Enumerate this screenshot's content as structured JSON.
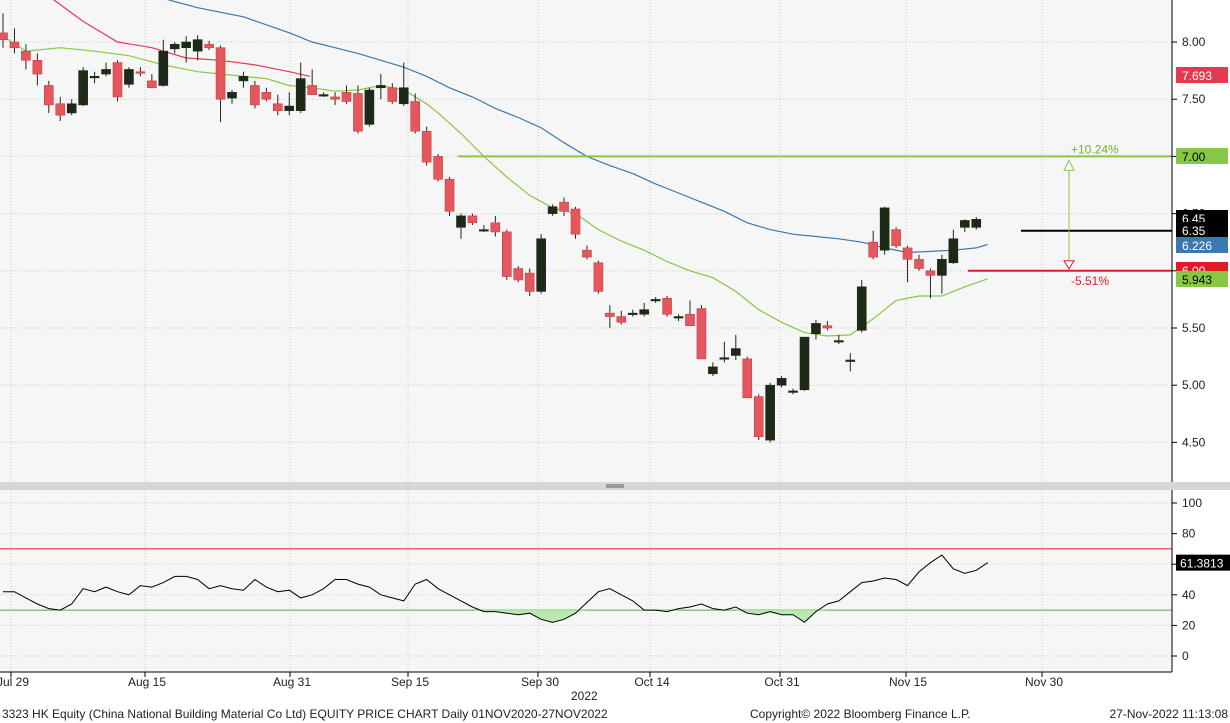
{
  "chart_data": [
    {
      "type": "candlestick",
      "title": "",
      "ylim": [
        4.15,
        8.25
      ],
      "y_ticks": [
        "8.00",
        "7.50",
        "7.00",
        "6.50",
        "6.00",
        "5.50",
        "5.00",
        "4.50"
      ],
      "y_tick_values": [
        8.0,
        7.5,
        7.0,
        6.5,
        6.0,
        5.5,
        5.0,
        4.5
      ],
      "up_color": "#1d2a17",
      "down_color": "#e5575f",
      "candles": [
        {
          "o": 8.08,
          "h": 8.25,
          "l": 7.95,
          "c": 8.02
        },
        {
          "o": 8.0,
          "h": 8.12,
          "l": 7.9,
          "c": 7.95
        },
        {
          "o": 7.92,
          "h": 7.98,
          "l": 7.76,
          "c": 7.84
        },
        {
          "o": 7.84,
          "h": 7.9,
          "l": 7.62,
          "c": 7.72
        },
        {
          "o": 7.62,
          "h": 7.66,
          "l": 7.38,
          "c": 7.45
        },
        {
          "o": 7.46,
          "h": 7.52,
          "l": 7.31,
          "c": 7.36
        },
        {
          "o": 7.38,
          "h": 7.5,
          "l": 7.36,
          "c": 7.46
        },
        {
          "o": 7.45,
          "h": 7.78,
          "l": 7.44,
          "c": 7.75
        },
        {
          "o": 7.7,
          "h": 7.74,
          "l": 7.64,
          "c": 7.7
        },
        {
          "o": 7.72,
          "h": 7.82,
          "l": 7.7,
          "c": 7.76
        },
        {
          "o": 7.82,
          "h": 7.84,
          "l": 7.48,
          "c": 7.52
        },
        {
          "o": 7.63,
          "h": 7.78,
          "l": 7.6,
          "c": 7.76
        },
        {
          "o": 7.74,
          "h": 7.78,
          "l": 7.7,
          "c": 7.73
        },
        {
          "o": 7.66,
          "h": 7.72,
          "l": 7.6,
          "c": 7.6
        },
        {
          "o": 7.62,
          "h": 8.02,
          "l": 7.61,
          "c": 7.92
        },
        {
          "o": 7.94,
          "h": 8.0,
          "l": 7.9,
          "c": 7.98
        },
        {
          "o": 7.95,
          "h": 8.05,
          "l": 7.82,
          "c": 8.0
        },
        {
          "o": 7.92,
          "h": 8.06,
          "l": 7.84,
          "c": 8.02
        },
        {
          "o": 7.98,
          "h": 8.01,
          "l": 7.93,
          "c": 7.95
        },
        {
          "o": 7.95,
          "h": 7.97,
          "l": 7.3,
          "c": 7.5
        },
        {
          "o": 7.51,
          "h": 7.58,
          "l": 7.46,
          "c": 7.56
        },
        {
          "o": 7.66,
          "h": 7.74,
          "l": 7.6,
          "c": 7.7
        },
        {
          "o": 7.62,
          "h": 7.66,
          "l": 7.42,
          "c": 7.45
        },
        {
          "o": 7.56,
          "h": 7.6,
          "l": 7.48,
          "c": 7.5
        },
        {
          "o": 7.46,
          "h": 7.54,
          "l": 7.36,
          "c": 7.4
        },
        {
          "o": 7.4,
          "h": 7.56,
          "l": 7.36,
          "c": 7.44
        },
        {
          "o": 7.4,
          "h": 7.82,
          "l": 7.38,
          "c": 7.68
        },
        {
          "o": 7.62,
          "h": 7.76,
          "l": 7.58,
          "c": 7.54
        },
        {
          "o": 7.54,
          "h": 7.56,
          "l": 7.52,
          "c": 7.54
        },
        {
          "o": 7.52,
          "h": 7.56,
          "l": 7.45,
          "c": 7.5
        },
        {
          "o": 7.56,
          "h": 7.62,
          "l": 7.46,
          "c": 7.48
        },
        {
          "o": 7.55,
          "h": 7.62,
          "l": 7.2,
          "c": 7.22
        },
        {
          "o": 7.28,
          "h": 7.6,
          "l": 7.26,
          "c": 7.58
        },
        {
          "o": 7.6,
          "h": 7.72,
          "l": 7.5,
          "c": 7.62
        },
        {
          "o": 7.6,
          "h": 7.64,
          "l": 7.46,
          "c": 7.48
        },
        {
          "o": 7.46,
          "h": 7.82,
          "l": 7.44,
          "c": 7.6
        },
        {
          "o": 7.48,
          "h": 7.55,
          "l": 7.2,
          "c": 7.22
        },
        {
          "o": 7.22,
          "h": 7.26,
          "l": 6.92,
          "c": 6.95
        },
        {
          "o": 7.0,
          "h": 7.02,
          "l": 6.78,
          "c": 6.8
        },
        {
          "o": 6.8,
          "h": 6.82,
          "l": 6.48,
          "c": 6.52
        },
        {
          "o": 6.38,
          "h": 6.5,
          "l": 6.28,
          "c": 6.48
        },
        {
          "o": 6.48,
          "h": 6.5,
          "l": 6.4,
          "c": 6.42
        },
        {
          "o": 6.36,
          "h": 6.4,
          "l": 6.34,
          "c": 6.36
        },
        {
          "o": 6.42,
          "h": 6.48,
          "l": 6.3,
          "c": 6.34
        },
        {
          "o": 6.34,
          "h": 6.36,
          "l": 5.92,
          "c": 5.95
        },
        {
          "o": 6.02,
          "h": 6.04,
          "l": 5.9,
          "c": 5.92
        },
        {
          "o": 5.98,
          "h": 6.02,
          "l": 5.78,
          "c": 5.82
        },
        {
          "o": 5.82,
          "h": 6.32,
          "l": 5.8,
          "c": 6.28
        },
        {
          "o": 6.5,
          "h": 6.58,
          "l": 6.48,
          "c": 6.56
        },
        {
          "o": 6.6,
          "h": 6.64,
          "l": 6.48,
          "c": 6.52
        },
        {
          "o": 6.54,
          "h": 6.56,
          "l": 6.28,
          "c": 6.32
        },
        {
          "o": 6.18,
          "h": 6.22,
          "l": 6.1,
          "c": 6.12
        },
        {
          "o": 6.07,
          "h": 6.09,
          "l": 5.8,
          "c": 5.82
        },
        {
          "o": 5.63,
          "h": 5.7,
          "l": 5.5,
          "c": 5.6
        },
        {
          "o": 5.6,
          "h": 5.65,
          "l": 5.53,
          "c": 5.55
        },
        {
          "o": 5.63,
          "h": 5.66,
          "l": 5.6,
          "c": 5.63
        },
        {
          "o": 5.62,
          "h": 5.72,
          "l": 5.6,
          "c": 5.66
        },
        {
          "o": 5.75,
          "h": 5.77,
          "l": 5.72,
          "c": 5.75
        },
        {
          "o": 5.76,
          "h": 5.78,
          "l": 5.6,
          "c": 5.62
        },
        {
          "o": 5.6,
          "h": 5.62,
          "l": 5.56,
          "c": 5.6
        },
        {
          "o": 5.62,
          "h": 5.74,
          "l": 5.52,
          "c": 5.52
        },
        {
          "o": 5.67,
          "h": 5.7,
          "l": 5.23,
          "c": 5.23
        },
        {
          "o": 5.1,
          "h": 5.2,
          "l": 5.08,
          "c": 5.16
        },
        {
          "o": 5.24,
          "h": 5.38,
          "l": 5.2,
          "c": 5.24
        },
        {
          "o": 5.26,
          "h": 5.44,
          "l": 5.22,
          "c": 5.32
        },
        {
          "o": 5.23,
          "h": 5.25,
          "l": 4.89,
          "c": 4.89
        },
        {
          "o": 4.9,
          "h": 4.92,
          "l": 4.52,
          "c": 4.55
        },
        {
          "o": 4.52,
          "h": 5.02,
          "l": 4.5,
          "c": 5.0
        },
        {
          "o": 5.0,
          "h": 5.08,
          "l": 4.98,
          "c": 5.06
        },
        {
          "o": 4.94,
          "h": 4.97,
          "l": 4.92,
          "c": 4.95
        },
        {
          "o": 4.96,
          "h": 5.42,
          "l": 4.95,
          "c": 5.42
        },
        {
          "o": 5.45,
          "h": 5.57,
          "l": 5.4,
          "c": 5.54
        },
        {
          "o": 5.52,
          "h": 5.56,
          "l": 5.48,
          "c": 5.5
        },
        {
          "o": 5.39,
          "h": 5.44,
          "l": 5.36,
          "c": 5.39
        },
        {
          "o": 5.22,
          "h": 5.28,
          "l": 5.12,
          "c": 5.22
        },
        {
          "o": 5.48,
          "h": 5.92,
          "l": 5.46,
          "c": 5.86
        },
        {
          "o": 6.25,
          "h": 6.35,
          "l": 6.1,
          "c": 6.12
        },
        {
          "o": 6.18,
          "h": 6.56,
          "l": 6.14,
          "c": 6.55
        },
        {
          "o": 6.36,
          "h": 6.38,
          "l": 6.2,
          "c": 6.22
        },
        {
          "o": 6.2,
          "h": 6.22,
          "l": 5.9,
          "c": 6.1
        },
        {
          "o": 6.1,
          "h": 6.14,
          "l": 6.0,
          "c": 6.02
        },
        {
          "o": 6.0,
          "h": 6.02,
          "l": 5.76,
          "c": 5.96
        },
        {
          "o": 5.96,
          "h": 6.14,
          "l": 5.8,
          "c": 6.1
        },
        {
          "o": 6.07,
          "h": 6.36,
          "l": 6.06,
          "c": 6.28
        },
        {
          "o": 6.38,
          "h": 6.45,
          "l": 6.34,
          "c": 6.44
        },
        {
          "o": 6.38,
          "h": 6.47,
          "l": 6.36,
          "c": 6.45
        }
      ],
      "moving_averages": [
        {
          "name": "",
          "color": "#e63950",
          "x": [
            0,
            1,
            4,
            7,
            10,
            13,
            16,
            19,
            22,
            25,
            26.8
          ],
          "values": [
            8.62,
            8.55,
            8.4,
            8.18,
            8.0,
            7.95,
            7.86,
            7.84,
            7.8,
            7.74,
            7.7
          ]
        },
        {
          "name": "",
          "color": "#3b78b0",
          "x": [
            0,
            2,
            5,
            8,
            11,
            14,
            17,
            19,
            21,
            23,
            25,
            27,
            29,
            31,
            33,
            35,
            37,
            39,
            41,
            43,
            45,
            47,
            49,
            51,
            53,
            55,
            57,
            59,
            61,
            63,
            65,
            67,
            69,
            71,
            73,
            75,
            77,
            79,
            81,
            83,
            85,
            86
          ],
          "values": [
            8.85,
            8.8,
            8.72,
            8.6,
            8.48,
            8.38,
            8.3,
            8.26,
            8.22,
            8.15,
            8.08,
            8.0,
            7.95,
            7.9,
            7.84,
            7.78,
            7.7,
            7.6,
            7.52,
            7.42,
            7.34,
            7.25,
            7.12,
            7.0,
            6.92,
            6.85,
            6.76,
            6.68,
            6.6,
            6.52,
            6.42,
            6.36,
            6.32,
            6.3,
            6.28,
            6.25,
            6.2,
            6.16,
            6.17,
            6.18,
            6.2,
            6.23
          ]
        },
        {
          "name": "",
          "color": "#86c845",
          "x": [
            0,
            2,
            5,
            8,
            11,
            14,
            17,
            19,
            21,
            23,
            25,
            27,
            29,
            31,
            33,
            35,
            37,
            38,
            40,
            42,
            44,
            46,
            48,
            50,
            52,
            54,
            56,
            58,
            60,
            62,
            64,
            66,
            68,
            70,
            72,
            74,
            76,
            78,
            80,
            82,
            84,
            86
          ],
          "values": [
            8.05,
            7.92,
            7.95,
            7.92,
            7.88,
            7.8,
            7.74,
            7.72,
            7.7,
            7.68,
            7.62,
            7.6,
            7.57,
            7.58,
            7.62,
            7.58,
            7.46,
            7.38,
            7.2,
            7.0,
            6.82,
            6.66,
            6.55,
            6.5,
            6.36,
            6.26,
            6.18,
            6.08,
            6.0,
            5.94,
            5.82,
            5.66,
            5.55,
            5.46,
            5.43,
            5.44,
            5.58,
            5.74,
            5.78,
            5.78,
            5.86,
            5.93
          ]
        }
      ],
      "horizontal_lines": [
        {
          "value": 7.0,
          "color": "#86c845"
        },
        {
          "value": 6.35,
          "color": "#000000"
        },
        {
          "value": 6.0,
          "color": "#e01b24"
        }
      ],
      "measure_labels": [
        {
          "text": "+10.24%",
          "color": "#6fb52f"
        },
        {
          "text": "-5.51%",
          "color": "#e01b24"
        }
      ],
      "price_tags": [
        {
          "text": "7.693",
          "value": 7.693,
          "bg": "#e63950",
          "fg": "#ffffff"
        },
        {
          "text": "7.00",
          "value": 7.0,
          "bg": "#86c845",
          "fg": "#000000"
        },
        {
          "text": "6.45",
          "value": 6.45,
          "bg": "#000000",
          "fg": "#ffffff"
        },
        {
          "text": "6.35",
          "value": 6.35,
          "bg": "#000000",
          "fg": "#ffffff"
        },
        {
          "text": "6.226",
          "value": 6.226,
          "bg": "#3b78b0",
          "fg": "#ffffff"
        },
        {
          "text": "6.00",
          "value": 6.0,
          "bg": "#e01b24",
          "fg": "#ffffff"
        },
        {
          "text": "5.943",
          "value": 5.943,
          "bg": "#86c845",
          "fg": "#000000"
        }
      ]
    },
    {
      "type": "line",
      "title": "",
      "ylim": [
        -8,
        112
      ],
      "y_ticks": [
        "100",
        "80",
        "60",
        "40",
        "20",
        "0"
      ],
      "y_tick_values": [
        100,
        80,
        60,
        40,
        20,
        0
      ],
      "overbought": 70,
      "oversold": 30,
      "line_color": "#000000",
      "last_value_tag": "61.3813",
      "values": [
        42,
        42,
        38,
        34,
        31,
        30,
        34,
        44,
        42,
        45,
        42,
        40,
        46,
        45,
        48,
        52,
        52,
        50,
        44,
        46,
        44,
        43,
        50,
        45,
        42,
        43,
        38,
        40,
        44,
        50,
        50,
        47,
        45,
        40,
        38,
        36,
        47,
        50,
        44,
        40,
        36,
        32,
        29,
        29,
        28,
        27,
        28,
        24,
        22,
        24,
        28,
        35,
        42,
        44,
        40,
        36,
        30,
        30,
        29,
        31,
        32,
        34,
        31,
        30,
        32,
        28,
        27,
        29,
        27,
        27,
        22,
        29,
        34,
        36,
        42,
        48,
        49,
        51,
        50,
        46,
        55,
        61,
        66,
        57,
        54,
        56,
        61
      ]
    }
  ],
  "x_axis_labels": [
    "Jul 29",
    "Aug 15",
    "Aug 31",
    "Sep 15",
    "Sep 30",
    "Oct 14",
    "Oct 31",
    "Nov 15",
    "Nov 30"
  ],
  "x_axis_year": "2022",
  "footer": {
    "left": "3323 HK Equity (China National Building Material Co Ltd)  EQUITY PRICE CHART   Daily 01NOV2020-27NOV2022",
    "center": "Copyright© 2022 Bloomberg Finance L.P.",
    "right": "27-Nov-2022 11:13:08"
  }
}
